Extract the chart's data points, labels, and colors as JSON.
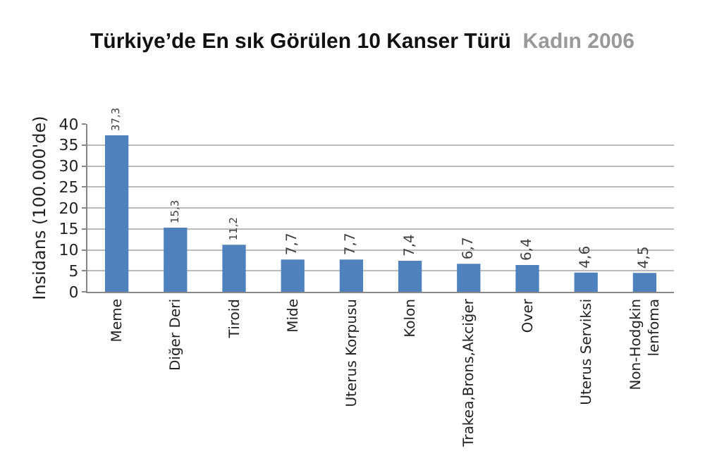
{
  "chart_data": {
    "type": "bar",
    "title": "Türkiye’de En sık Görülen 10 Kanser Türü",
    "subtitle": "Kadın 2006",
    "ylabel": "Insidans (100.000'de)",
    "categories": [
      "Meme",
      "Diğer Deri",
      "Tiroid",
      "Mide",
      "Uterus Korpusu",
      "Kolon",
      "Trakea,Brons,Akciğer",
      "Over",
      "Uterus Serviksi",
      "Non-Hodgkin lenfoma"
    ],
    "values": [
      37.3,
      15.3,
      11.2,
      7.7,
      7.7,
      7.4,
      6.7,
      6.4,
      4.6,
      4.5
    ],
    "value_labels": [
      "37,3",
      "15,3",
      "11,2",
      "7,7",
      "7,7",
      "7,4",
      "6,7",
      "6,4",
      "4,6",
      "4,5"
    ],
    "color": "#4f81bd",
    "ylim": [
      0,
      40
    ],
    "yticks": [
      0,
      5,
      10,
      15,
      20,
      25,
      30,
      35,
      40
    ],
    "grid": "y",
    "legend": false
  }
}
